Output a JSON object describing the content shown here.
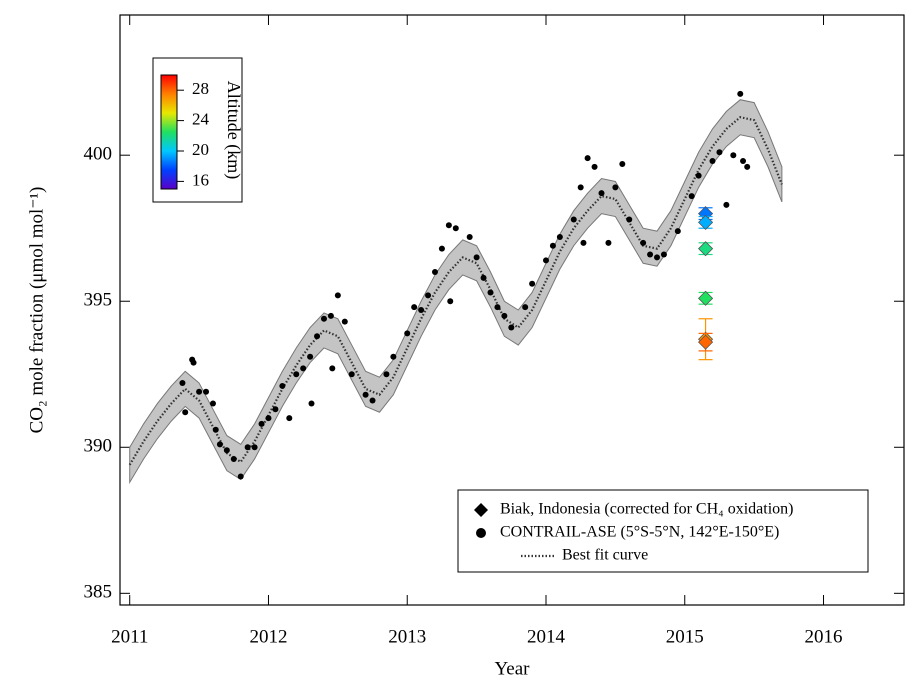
{
  "chart_data": {
    "type": "scatter",
    "xlabel": "Year",
    "ylabel": "CO₂ mole fraction (μmol mol⁻¹)",
    "xlim": [
      2010.93,
      2016.58
    ],
    "ylim": [
      384.6,
      404.8
    ],
    "xticks": [
      2011,
      2012,
      2013,
      2014,
      2015,
      2016
    ],
    "yticks": [
      385,
      390,
      395,
      400
    ],
    "legend": "lower right",
    "colorbar": {
      "label": "Altitude (km)",
      "lim": [
        15,
        30
      ],
      "ticks": [
        16,
        20,
        24,
        28
      ],
      "colors": [
        "#5a00c8",
        "#0040ff",
        "#00c8ff",
        "#20e060",
        "#e8e800",
        "#ff8000",
        "#ff0000"
      ]
    },
    "series": [
      {
        "name": "Biak, Indonesia (corrected for CH₄ oxidation)",
        "marker": "diamond",
        "color": "#000000",
        "x": [
          2015.15,
          2015.15,
          2015.15,
          2015.15,
          2015.15,
          2015.15
        ],
        "values": [
          398.0,
          397.7,
          396.8,
          395.1,
          393.7,
          393.6
        ],
        "errors": [
          0.2,
          0.2,
          0.2,
          0.2,
          0.7,
          0.3
        ],
        "altitude": [
          18.5,
          19.5,
          22,
          22.5,
          27,
          28
        ]
      },
      {
        "name": "CONTRAIL-ASE (5°S-5°N, 142°E-150°E)",
        "marker": "circle",
        "color": "#000000",
        "x": [
          2011.38,
          2011.4,
          2011.45,
          2011.46,
          2011.5,
          2011.55,
          2011.6,
          2011.62,
          2011.65,
          2011.7,
          2011.75,
          2011.8,
          2011.85,
          2011.9,
          2011.95,
          2012.0,
          2012.05,
          2012.1,
          2012.15,
          2012.2,
          2012.25,
          2012.3,
          2012.35,
          2012.4,
          2012.45,
          2012.5,
          2012.55,
          2012.46,
          2012.31,
          2012.6,
          2012.7,
          2012.75,
          2012.85,
          2012.9,
          2013.0,
          2013.05,
          2013.1,
          2013.15,
          2013.2,
          2013.25,
          2013.3,
          2013.35,
          2013.31,
          2013.45,
          2013.5,
          2013.55,
          2013.6,
          2013.65,
          2013.7,
          2013.75,
          2013.85,
          2013.9,
          2014.0,
          2014.05,
          2014.1,
          2014.2,
          2014.25,
          2014.3,
          2014.27,
          2014.35,
          2014.45,
          2014.4,
          2014.5,
          2014.55,
          2014.6,
          2014.7,
          2014.75,
          2014.8,
          2014.85,
          2014.95,
          2015.05,
          2015.1,
          2015.2,
          2015.25,
          2015.3,
          2015.35,
          2015.4,
          2015.45,
          2015.42
        ],
        "values": [
          392.2,
          391.2,
          393.0,
          392.9,
          391.9,
          391.9,
          391.5,
          390.6,
          390.1,
          389.9,
          389.6,
          389.0,
          390.0,
          390.0,
          390.8,
          391.0,
          391.3,
          392.1,
          391.0,
          392.5,
          392.7,
          393.1,
          393.8,
          394.4,
          394.5,
          395.2,
          394.3,
          392.7,
          391.5,
          392.5,
          391.8,
          391.6,
          392.5,
          393.1,
          393.9,
          394.8,
          394.7,
          395.2,
          396.0,
          396.8,
          397.6,
          397.5,
          395.0,
          397.2,
          396.5,
          395.8,
          395.3,
          394.8,
          394.5,
          394.1,
          394.8,
          395.6,
          396.4,
          396.9,
          397.2,
          397.8,
          398.9,
          399.9,
          397.0,
          399.6,
          397.0,
          398.7,
          398.9,
          399.7,
          397.8,
          397.0,
          396.6,
          396.5,
          396.6,
          397.4,
          398.6,
          399.3,
          399.8,
          400.1,
          398.3,
          400.0,
          402.1,
          399.6,
          399.8
        ]
      },
      {
        "name": "Best fit curve",
        "marker": "dotted-line",
        "color": "#333333",
        "band": 0.6,
        "x": [
          2011.0,
          2011.1,
          2011.2,
          2011.3,
          2011.4,
          2011.5,
          2011.6,
          2011.7,
          2011.8,
          2011.9,
          2012.0,
          2012.1,
          2012.2,
          2012.3,
          2012.4,
          2012.5,
          2012.6,
          2012.7,
          2012.8,
          2012.9,
          2013.0,
          2013.1,
          2013.2,
          2013.3,
          2013.4,
          2013.5,
          2013.6,
          2013.7,
          2013.8,
          2013.9,
          2014.0,
          2014.1,
          2014.2,
          2014.3,
          2014.4,
          2014.5,
          2014.6,
          2014.7,
          2014.8,
          2014.9,
          2015.0,
          2015.1,
          2015.2,
          2015.3,
          2015.4,
          2015.5,
          2015.6,
          2015.7
        ],
        "values": [
          389.4,
          390.2,
          390.9,
          391.5,
          392.0,
          391.6,
          390.7,
          389.8,
          389.5,
          390.2,
          391.1,
          392.0,
          392.8,
          393.5,
          394.0,
          393.8,
          392.9,
          392.0,
          391.8,
          392.4,
          393.4,
          394.4,
          395.3,
          396.0,
          396.5,
          396.3,
          395.4,
          394.4,
          394.1,
          394.7,
          395.7,
          396.7,
          397.5,
          398.1,
          398.6,
          398.5,
          397.7,
          396.9,
          396.8,
          397.5,
          398.5,
          399.5,
          400.3,
          400.9,
          401.3,
          401.2,
          400.2,
          399.0
        ]
      }
    ]
  }
}
